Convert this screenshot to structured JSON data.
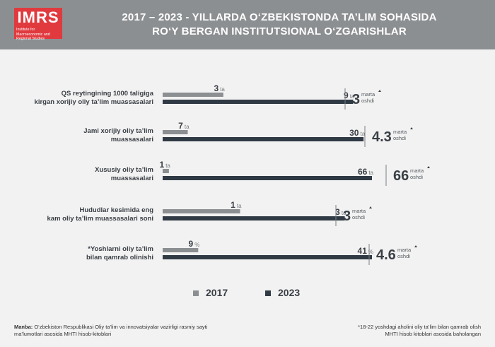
{
  "header": {
    "logo_text": "IMRS",
    "logo_subtitle": "Institute for Macroeconomic and Regional Studies",
    "title_line1": "2017 – 2023 - YILLARDA O‘ZBEKISTONDA TA’LIM SOHASIDA",
    "title_line2": "RO‘Y BERGAN INSTITUTSIONAL O‘ZGARISHLAR"
  },
  "colors": {
    "series_2017": "#8c8f91",
    "series_2023": "#2f3a45",
    "header_bg": "#8c8f91",
    "logo_bg": "#e03a3f"
  },
  "chart_data": {
    "type": "bar",
    "orientation": "horizontal",
    "categories": [
      [
        "QS reytingining 1000 taligiga",
        "kirgan xorijiy oliy ta’lim muassasalari"
      ],
      [
        "Jami xorijiy oliy ta’lim",
        "muassasalari"
      ],
      [
        "Xususiy oliy ta’lim",
        "muassasalari"
      ],
      [
        "Hududlar kesimida eng",
        "kam oliy ta’lim muassasalari soni"
      ],
      [
        "*Yoshlarni oliy ta’lim",
        "bilan qamrab olinishi"
      ]
    ],
    "series": [
      {
        "name": "2017",
        "values": [
          3,
          7,
          1,
          1,
          9
        ],
        "labels": [
          "3",
          "7",
          "1",
          "1",
          "9"
        ],
        "units": [
          "ta",
          "ta",
          "ta",
          "ta",
          "%"
        ]
      },
      {
        "name": "2023",
        "values": [
          9,
          30,
          66,
          3,
          41
        ],
        "labels": [
          "9",
          "30",
          "66",
          "3",
          "41"
        ],
        "units": [
          "ta",
          "ta",
          "ta",
          "ta",
          "%"
        ]
      }
    ],
    "growth": [
      {
        "value": "3",
        "word": "marta",
        "word2": "oshdi"
      },
      {
        "value": "4.3",
        "word": "marta",
        "word2": "oshdi"
      },
      {
        "value": "66",
        "word": "marta",
        "word2": "oshdi"
      },
      {
        "value": "3",
        "word": "marta",
        "word2": "oshdi"
      },
      {
        "value": "4.6",
        "word": "marta",
        "word2": "oshdi"
      }
    ],
    "bar_fraction_2017": [
      0.29,
      0.12,
      0.03,
      0.37,
      0.17
    ],
    "bar_fraction_2023": [
      0.91,
      0.96,
      1.0,
      0.87,
      1.0
    ],
    "legend_position": "bottom-center"
  },
  "legend": {
    "item_2017": "2017",
    "item_2023": "2023"
  },
  "footer": {
    "source_label": "Manba:",
    "source_text_line1": " O‘zbekiston Respublikasi Oliy ta’lim va innovatsiyalar vazirligi rasmiy sayti",
    "source_text_line2": "ma’lumotlari asosida MHTI hisob-kitoblari",
    "note_line1": "*18-22 yoshdagi aholini oliy ta’lim bilan qamrab olish",
    "note_line2": "MHTI hisob kitoblari asosida baholangan"
  }
}
